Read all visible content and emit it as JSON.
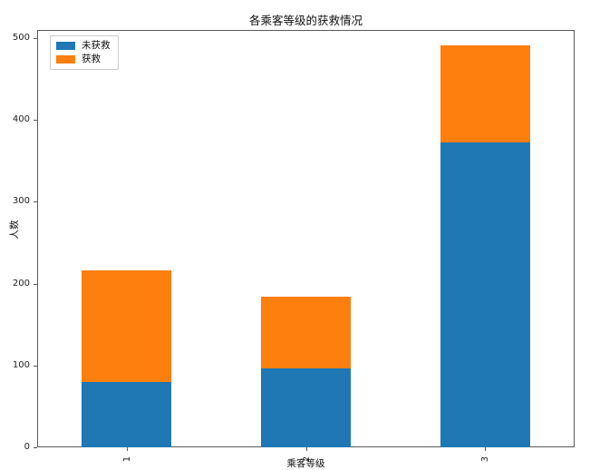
{
  "figure": {
    "background": "#ffffff",
    "spine_color": "#5a5a5a"
  },
  "chart_data": {
    "type": "bar",
    "stacked": true,
    "title": "各乘客等级的获救情况",
    "xlabel": "乘客等级",
    "ylabel": "人数",
    "categories": [
      "1",
      "2",
      "3"
    ],
    "series": [
      {
        "name": "未获救",
        "color": "#1f77b4",
        "values": [
          80,
          97,
          372
        ]
      },
      {
        "name": "获救",
        "color": "#ff7f0e",
        "values": [
          136,
          87,
          119
        ]
      }
    ],
    "totals": [
      216,
      184,
      491
    ],
    "ylim": [
      0,
      510
    ],
    "yticks": [
      0,
      100,
      200,
      300,
      400,
      500
    ],
    "xtick_rotation": 90,
    "grid": false,
    "legend_position": "upper left"
  }
}
